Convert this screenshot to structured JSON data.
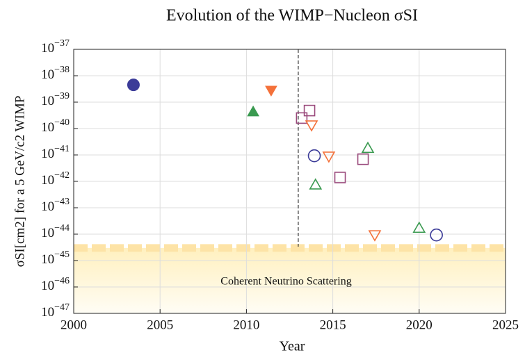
{
  "chart_data": {
    "type": "scatter",
    "title": "Evolution of the WIMP−Nucleon σSI",
    "x_label": "Year",
    "y_label": "σSI[cm2] for a 5 GeV/c2 WIMP",
    "annotation": "Coherent Neutrino Scattering",
    "vline": 2013,
    "neutrino_floor": 3e-45,
    "log_y": true,
    "grid": true,
    "xlim": [
      2000,
      2025
    ],
    "xticks": [
      2000,
      2005,
      2010,
      2015,
      2020,
      2025
    ],
    "ylim": [
      1e-47,
      1e-37
    ],
    "yticks": [
      {
        "value": 1e-37,
        "label": "10−37"
      },
      {
        "value": 1e-38,
        "label": "10−38"
      },
      {
        "value": 1e-39,
        "label": "10−39"
      },
      {
        "value": 1e-40,
        "label": "10−40"
      },
      {
        "value": 1e-41,
        "label": "10−41"
      },
      {
        "value": 1e-42,
        "label": "10−42"
      },
      {
        "value": 1e-43,
        "label": "10−43"
      },
      {
        "value": 1e-44,
        "label": "10−44"
      },
      {
        "value": 1e-45,
        "label": "10−45"
      },
      {
        "value": 1e-46,
        "label": "10−46"
      },
      {
        "value": 1e-47,
        "label": "10−47"
      }
    ],
    "series": [
      {
        "color": "#3b3b98",
        "marker": "circle",
        "filled": true,
        "x": [
          2003.46
        ],
        "values": [
          4.5e-39
        ]
      },
      {
        "color": "#f4713a",
        "marker": "triangle-down",
        "filled": true,
        "x": [
          2011.43
        ],
        "values": [
          2.8e-39
        ]
      },
      {
        "color": "#3a9a50",
        "marker": "triangle-up",
        "filled": true,
        "x": [
          2010.39
        ],
        "values": [
          4.3e-40
        ]
      },
      {
        "color": "#9a4a7c",
        "marker": "square",
        "filled": false,
        "x": [
          2013.65,
          2013.2,
          2016.75,
          2015.42
        ],
        "values": [
          4.8e-40,
          2.5e-40,
          6.9e-42,
          1.4e-42
        ]
      },
      {
        "color": "#f4713a",
        "marker": "triangle-down",
        "filled": false,
        "x": [
          2013.77,
          2014.77,
          2017.43
        ],
        "values": [
          1.35e-40,
          8.9e-42,
          9.3e-45
        ]
      },
      {
        "color": "#3a9a50",
        "marker": "triangle-up",
        "filled": false,
        "x": [
          2014.0,
          2017.03,
          2020.0
        ],
        "values": [
          7.4e-43,
          1.8e-41,
          1.7e-44
        ]
      },
      {
        "color": "#3b3b98",
        "marker": "circle",
        "filled": false,
        "x": [
          2013.93,
          2021.0
        ],
        "values": [
          9.3e-42,
          9.3e-45
        ]
      }
    ]
  }
}
